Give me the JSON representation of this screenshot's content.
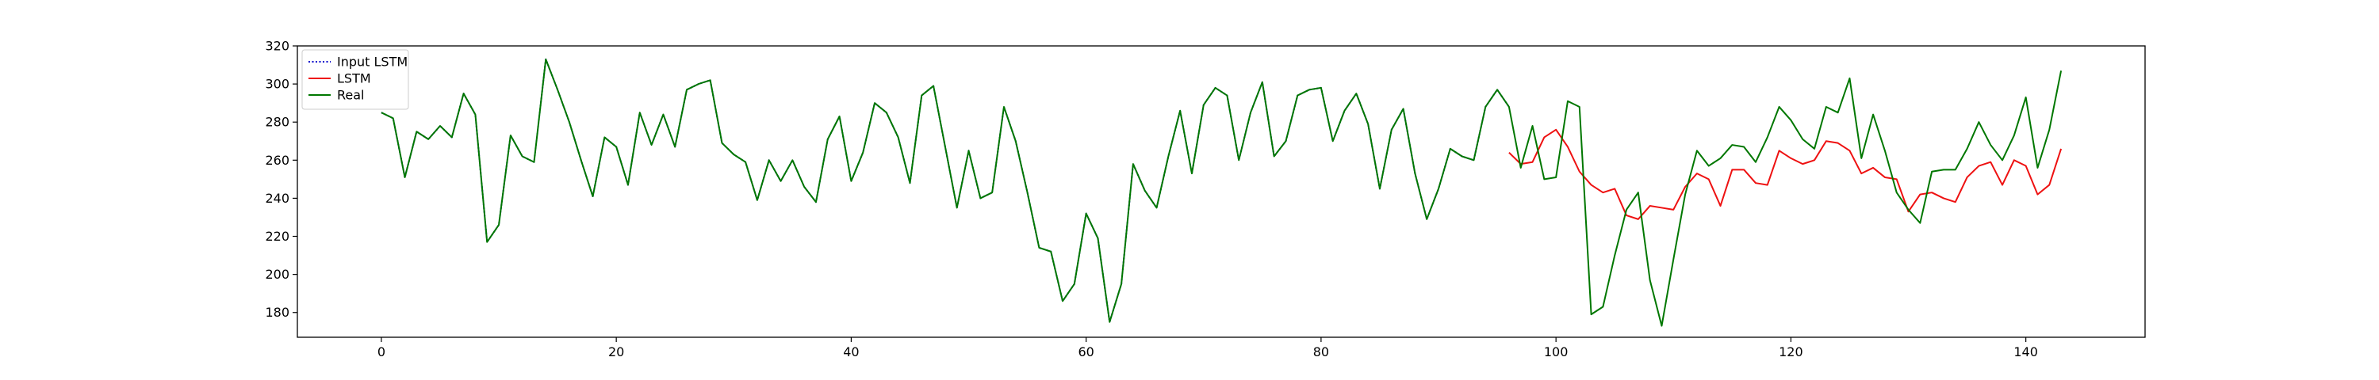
{
  "chart_data": {
    "type": "line",
    "title": "",
    "xlabel": "",
    "ylabel": "",
    "xlim": [
      -7.15,
      150.15
    ],
    "ylim": [
      167,
      320
    ],
    "xticks": [
      0,
      20,
      40,
      60,
      80,
      100,
      120,
      140
    ],
    "yticks": [
      180,
      200,
      220,
      240,
      260,
      280,
      300,
      320
    ],
    "grid": false,
    "legend": {
      "placement": "top-left",
      "entries": [
        "Input LSTM",
        "LSTM",
        "Real"
      ]
    },
    "series": [
      {
        "name": "Input LSTM",
        "color": "#0000cc",
        "style": "dotted",
        "x_start": 0,
        "values": [
          285,
          282,
          251,
          275,
          271,
          278,
          272,
          295,
          284,
          217,
          226,
          273,
          262,
          259,
          313,
          297,
          280,
          260,
          241,
          272,
          267,
          247,
          285,
          268,
          284,
          267,
          297,
          300,
          302,
          269,
          263,
          259,
          239,
          260,
          249,
          260,
          246,
          238,
          271,
          283,
          249,
          264,
          290,
          285,
          272,
          248,
          294,
          299,
          267,
          235,
          265,
          240,
          243,
          288,
          270,
          243,
          214,
          212,
          186,
          195,
          232,
          219,
          175,
          195,
          258,
          244,
          235,
          262,
          286,
          253,
          289,
          298,
          294,
          260,
          285,
          301,
          262,
          270,
          294,
          297,
          298,
          270,
          286,
          295,
          279,
          245,
          276,
          287,
          253,
          229,
          245,
          266,
          262,
          260,
          288,
          297,
          288
        ]
      },
      {
        "name": "LSTM",
        "color": "#ee1111",
        "style": "solid",
        "x_start": 96,
        "values": [
          264,
          258,
          259,
          272,
          276,
          267,
          254,
          247,
          243,
          245,
          231,
          229,
          236,
          235,
          234,
          246,
          253,
          250,
          236,
          255,
          255,
          248,
          247,
          265,
          261,
          258,
          260,
          270,
          269,
          265,
          253,
          256,
          251,
          250,
          233,
          242,
          243,
          240,
          238,
          251,
          257,
          259,
          247,
          260,
          257,
          242,
          247,
          266
        ]
      },
      {
        "name": "Real",
        "color": "#007700",
        "style": "solid",
        "x_start": 0,
        "values": [
          285,
          282,
          251,
          275,
          271,
          278,
          272,
          295,
          284,
          217,
          226,
          273,
          262,
          259,
          313,
          297,
          280,
          260,
          241,
          272,
          267,
          247,
          285,
          268,
          284,
          267,
          297,
          300,
          302,
          269,
          263,
          259,
          239,
          260,
          249,
          260,
          246,
          238,
          271,
          283,
          249,
          264,
          290,
          285,
          272,
          248,
          294,
          299,
          267,
          235,
          265,
          240,
          243,
          288,
          270,
          243,
          214,
          212,
          186,
          195,
          232,
          219,
          175,
          195,
          258,
          244,
          235,
          262,
          286,
          253,
          289,
          298,
          294,
          260,
          285,
          301,
          262,
          270,
          294,
          297,
          298,
          270,
          286,
          295,
          279,
          245,
          276,
          287,
          253,
          229,
          245,
          266,
          262,
          260,
          288,
          297,
          288,
          256,
          278,
          250,
          251,
          291,
          288,
          179,
          183,
          210,
          234,
          243,
          197,
          173,
          208,
          242,
          265,
          257,
          261,
          268,
          267,
          259,
          272,
          288,
          281,
          271,
          266,
          288,
          285,
          303,
          261,
          284,
          265,
          243,
          234,
          227,
          254,
          255,
          255,
          266,
          280,
          268,
          260,
          273,
          293,
          256,
          276,
          307
        ]
      }
    ]
  }
}
